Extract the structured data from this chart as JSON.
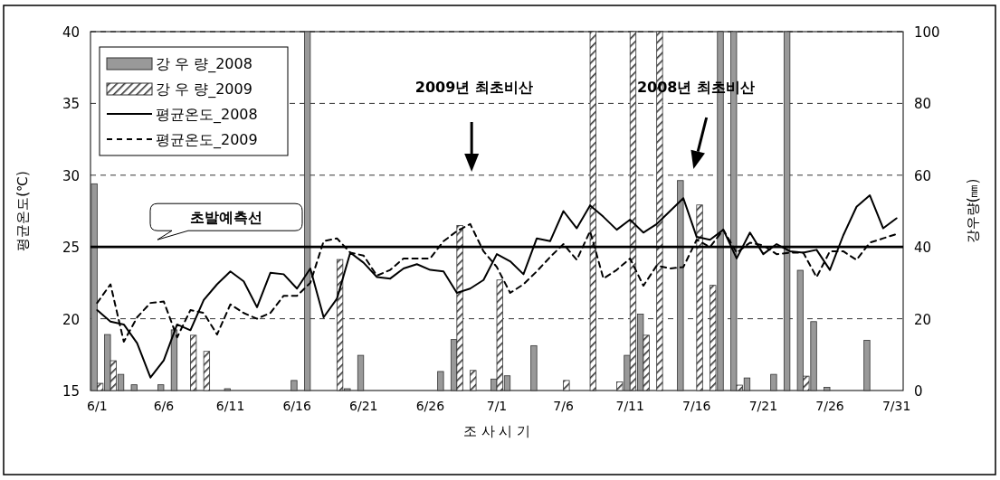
{
  "chart_data": {
    "type": "bar",
    "xlabel": "조 사 시 기",
    "ylabel": "평균온도(℃)",
    "y2label": "강우량(㎜)",
    "categories": [
      "6/1",
      null,
      null,
      null,
      null,
      "6/6",
      null,
      null,
      null,
      null,
      "6/11",
      null,
      null,
      null,
      null,
      "6/16",
      null,
      null,
      null,
      null,
      "6/21",
      null,
      null,
      null,
      null,
      "6/26",
      null,
      null,
      null,
      null,
      "7/1",
      null,
      null,
      null,
      null,
      "7/6",
      null,
      null,
      null,
      null,
      "7/11",
      null,
      null,
      null,
      null,
      "7/16",
      null,
      null,
      null,
      null,
      "7/21",
      null,
      null,
      null,
      null,
      "7/26",
      null,
      null,
      null,
      null,
      "7/31"
    ],
    "ylim": [
      15,
      40
    ],
    "yticks": [
      15,
      20,
      25,
      30,
      35,
      40
    ],
    "y2lim": [
      0,
      100
    ],
    "y2ticks": [
      0,
      20,
      40,
      60,
      80,
      100
    ],
    "grid": "y",
    "legend": "top left",
    "ref_lines": [
      {
        "axis": "y",
        "value": 25,
        "label": "초발예측선",
        "color": "#000000"
      }
    ],
    "annotations": [
      "2009년 최초비산",
      "2008년 최초비산"
    ],
    "series": [
      {
        "name": "강 우 량_2008",
        "axis": "y2",
        "color": "#999999",
        "values": [
          57.6,
          15.6,
          4.5,
          1.6,
          null,
          1.6,
          16.9,
          null,
          null,
          null,
          0.5,
          null,
          null,
          null,
          null,
          2.8,
          100,
          null,
          null,
          0.5,
          9.8,
          null,
          null,
          null,
          null,
          null,
          5.3,
          14.2,
          null,
          null,
          3.2,
          4.1,
          null,
          12.5,
          null,
          null,
          null,
          null,
          null,
          null,
          9.8,
          21.3,
          null,
          null,
          58.5,
          null,
          null,
          100,
          100,
          3.5,
          null,
          4.5,
          100,
          33.5,
          19.2,
          0.9,
          null,
          null,
          14.0,
          null,
          null
        ]
      },
      {
        "name": "강 우 량_2009",
        "axis": "y2",
        "color": "#333333",
        "values": [
          2.0,
          8.3,
          null,
          null,
          null,
          null,
          null,
          15.4,
          10.9,
          null,
          null,
          null,
          null,
          null,
          null,
          null,
          null,
          null,
          36.5,
          null,
          null,
          null,
          null,
          null,
          null,
          null,
          null,
          46.0,
          5.6,
          null,
          30.8,
          null,
          null,
          null,
          null,
          2.8,
          null,
          100,
          null,
          2.4,
          100,
          15.4,
          100,
          null,
          null,
          51.7,
          29.3,
          null,
          1.5,
          null,
          null,
          null,
          null,
          4.0,
          null,
          null,
          null,
          null,
          null,
          null,
          null
        ]
      },
      {
        "name": "평균온도_2008",
        "type": "line",
        "color": "#000000",
        "line_style": "solid",
        "values": [
          20.6,
          19.8,
          19.6,
          18.3,
          15.9,
          17.1,
          19.6,
          19.2,
          21.3,
          22.4,
          23.3,
          22.6,
          20.8,
          23.2,
          23.1,
          22.1,
          23.5,
          20.1,
          21.4,
          24.6,
          23.9,
          22.9,
          22.8,
          23.5,
          23.8,
          23.4,
          23.3,
          21.8,
          22.1,
          22.7,
          24.5,
          24.0,
          23.1,
          25.6,
          25.4,
          27.5,
          26.3,
          27.9,
          27.1,
          26.2,
          26.9,
          26.0,
          26.6,
          27.5,
          28.4,
          25.7,
          25.5,
          26.2,
          24.2,
          26.0,
          24.5,
          25.2,
          24.7,
          24.6,
          24.8,
          23.4,
          25.8,
          27.8,
          28.6,
          26.3,
          27.0
        ]
      },
      {
        "name": "평균온도_2009",
        "type": "line",
        "color": "#000000",
        "line_style": "dashed",
        "values": [
          21.1,
          22.4,
          18.4,
          20.1,
          21.1,
          21.2,
          18.7,
          20.6,
          20.4,
          18.9,
          21.0,
          20.4,
          20.0,
          20.4,
          21.6,
          21.6,
          22.5,
          25.4,
          25.6,
          24.6,
          24.4,
          23.0,
          23.4,
          24.2,
          24.2,
          24.2,
          25.4,
          26.1,
          26.6,
          24.7,
          23.6,
          21.8,
          22.4,
          23.3,
          24.3,
          25.2,
          24.1,
          26.1,
          22.8,
          23.4,
          24.2,
          22.3,
          23.7,
          23.5,
          23.6,
          25.5,
          25.0,
          26.2,
          24.6,
          25.3,
          25.1,
          24.5,
          24.6,
          24.6,
          22.9,
          24.7,
          24.7,
          24.1,
          25.3,
          25.6,
          25.9
        ]
      }
    ]
  }
}
